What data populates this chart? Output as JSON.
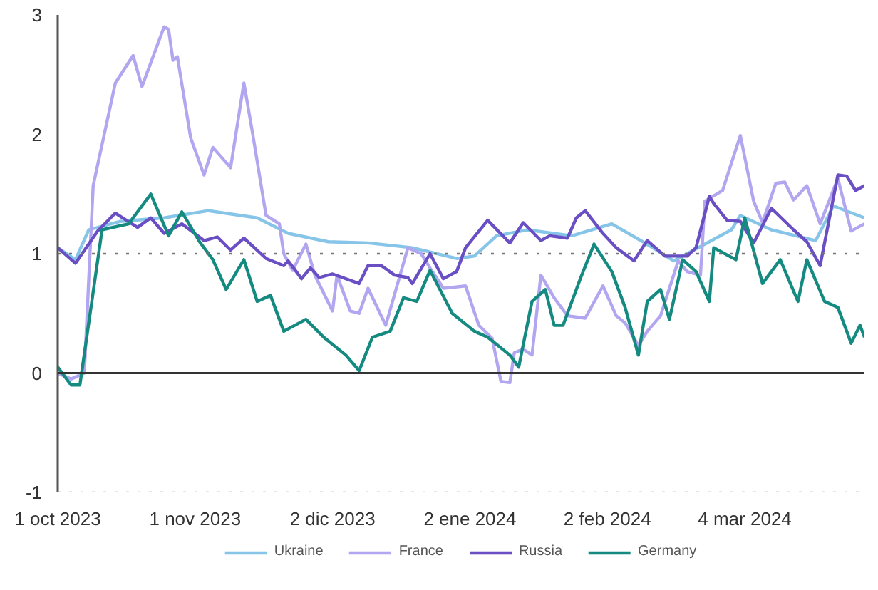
{
  "chart_data": {
    "type": "line",
    "xlim": [
      "2023-10-01",
      "2024-03-31"
    ],
    "xticks": [
      {
        "value": "2023-10-01",
        "label": "1 oct 2023"
      },
      {
        "value": "2023-11-01",
        "label": "1 nov 2023"
      },
      {
        "value": "2023-12-02",
        "label": "2 dic 2023"
      },
      {
        "value": "2024-01-02",
        "label": "2 ene 2024"
      },
      {
        "value": "2024-02-02",
        "label": "2 feb 2024"
      },
      {
        "value": "2024-03-04",
        "label": "4 mar 2024"
      }
    ],
    "ylim": [
      -1,
      3
    ],
    "yticks": [
      -1,
      0,
      1,
      2,
      3
    ],
    "grid": false,
    "legend": "bottom",
    "marker": "none",
    "line_style": "solid",
    "ref_lines": [
      {
        "axis": "y",
        "value": -1,
        "label": null,
        "color": "#999999",
        "line_style": "dotted"
      },
      {
        "axis": "y",
        "value": 0,
        "label": null,
        "color": "#333333",
        "line_style": "solid"
      },
      {
        "axis": "y",
        "value": 1,
        "label": null,
        "color": "#777777",
        "line_style": "dotted"
      }
    ],
    "series": [
      {
        "name": "Ukraine",
        "color": "#86c5e8",
        "x": [
          "2023-10-01",
          "2023-10-05",
          "2023-10-08",
          "2023-10-15",
          "2023-10-25",
          "2023-11-04",
          "2023-11-15",
          "2023-11-22",
          "2023-12-01",
          "2023-12-10",
          "2023-12-20",
          "2023-12-30",
          "2024-01-03",
          "2024-01-08",
          "2024-01-15",
          "2024-01-25",
          "2024-02-03",
          "2024-02-10",
          "2024-02-17",
          "2024-02-25",
          "2024-03-01",
          "2024-03-03",
          "2024-03-10",
          "2024-03-20",
          "2024-03-24",
          "2024-03-31"
        ],
        "values": [
          1.05,
          0.95,
          1.2,
          1.27,
          1.3,
          1.36,
          1.3,
          1.17,
          1.1,
          1.09,
          1.05,
          0.96,
          0.98,
          1.15,
          1.2,
          1.15,
          1.25,
          1.1,
          0.94,
          1.1,
          1.2,
          1.32,
          1.2,
          1.11,
          1.4,
          1.3
        ]
      },
      {
        "name": "France",
        "color": "#b3a6f0",
        "x": [
          "2023-10-01",
          "2023-10-04",
          "2023-10-07",
          "2023-10-09",
          "2023-10-14",
          "2023-10-18",
          "2023-10-20",
          "2023-10-25",
          "2023-10-26",
          "2023-10-27",
          "2023-10-28",
          "2023-10-31",
          "2023-11-03",
          "2023-11-05",
          "2023-11-09",
          "2023-11-12",
          "2023-11-14",
          "2023-11-17",
          "2023-11-20",
          "2023-11-21",
          "2023-11-23",
          "2023-11-26",
          "2023-11-28",
          "2023-12-02",
          "2023-12-03",
          "2023-12-06",
          "2023-12-08",
          "2023-12-10",
          "2023-12-14",
          "2023-12-19",
          "2023-12-22",
          "2023-12-24",
          "2023-12-27",
          "2024-01-01",
          "2024-01-04",
          "2024-01-07",
          "2024-01-09",
          "2024-01-11",
          "2024-01-12",
          "2024-01-14",
          "2024-01-16",
          "2024-01-18",
          "2024-01-21",
          "2024-01-24",
          "2024-01-28",
          "2024-02-01",
          "2024-02-04",
          "2024-02-06",
          "2024-02-09",
          "2024-02-11",
          "2024-02-14",
          "2024-02-18",
          "2024-02-20",
          "2024-02-23",
          "2024-02-24",
          "2024-02-28",
          "2024-03-03",
          "2024-03-06",
          "2024-03-08",
          "2024-03-11",
          "2024-03-13",
          "2024-03-15",
          "2024-03-18",
          "2024-03-21",
          "2024-03-25",
          "2024-03-28",
          "2024-03-31"
        ],
        "values": [
          0,
          -0.05,
          0,
          1.57,
          2.43,
          2.66,
          2.4,
          2.9,
          2.88,
          2.62,
          2.65,
          1.97,
          1.66,
          1.89,
          1.72,
          2.43,
          2.0,
          1.32,
          1.25,
          1.0,
          0.86,
          1.08,
          0.82,
          0.52,
          0.82,
          0.52,
          0.5,
          0.71,
          0.4,
          1.05,
          1.0,
          0.88,
          0.71,
          0.73,
          0.4,
          0.29,
          -0.07,
          -0.08,
          0.17,
          0.2,
          0.15,
          0.82,
          0.63,
          0.48,
          0.46,
          0.73,
          0.48,
          0.42,
          0.23,
          0.35,
          0.48,
          0.94,
          0.85,
          0.82,
          1.44,
          1.53,
          1.99,
          1.44,
          1.26,
          1.59,
          1.6,
          1.45,
          1.57,
          1.25,
          1.63,
          1.19,
          1.25
        ]
      },
      {
        "name": "Russia",
        "color": "#6a4fc4",
        "x": [
          "2023-10-01",
          "2023-10-05",
          "2023-10-10",
          "2023-10-14",
          "2023-10-19",
          "2023-10-22",
          "2023-10-25",
          "2023-10-29",
          "2023-11-03",
          "2023-11-06",
          "2023-11-09",
          "2023-11-12",
          "2023-11-17",
          "2023-11-21",
          "2023-11-22",
          "2023-11-25",
          "2023-11-27",
          "2023-11-29",
          "2023-12-02",
          "2023-12-08",
          "2023-12-10",
          "2023-12-13",
          "2023-12-16",
          "2023-12-19",
          "2023-12-20",
          "2023-12-24",
          "2023-12-27",
          "2023-12-30",
          "2024-01-01",
          "2024-01-06",
          "2024-01-11",
          "2024-01-14",
          "2024-01-18",
          "2024-01-20",
          "2024-01-24",
          "2024-01-26",
          "2024-01-28",
          "2024-02-01",
          "2024-02-04",
          "2024-02-08",
          "2024-02-11",
          "2024-02-15",
          "2024-02-20",
          "2024-02-22",
          "2024-02-25",
          "2024-02-26",
          "2024-02-29",
          "2024-03-03",
          "2024-03-06",
          "2024-03-10",
          "2024-03-15",
          "2024-03-18",
          "2024-03-21",
          "2024-03-25",
          "2024-03-27",
          "2024-03-29",
          "2024-03-31"
        ],
        "values": [
          1.05,
          0.92,
          1.19,
          1.34,
          1.22,
          1.3,
          1.17,
          1.25,
          1.11,
          1.14,
          1.03,
          1.13,
          0.96,
          0.9,
          0.94,
          0.79,
          0.88,
          0.8,
          0.83,
          0.75,
          0.9,
          0.9,
          0.82,
          0.8,
          0.75,
          1.0,
          0.79,
          0.85,
          1.05,
          1.28,
          1.09,
          1.26,
          1.11,
          1.15,
          1.13,
          1.3,
          1.36,
          1.17,
          1.05,
          0.94,
          1.11,
          0.98,
          0.98,
          1.05,
          1.48,
          1.42,
          1.28,
          1.27,
          1.09,
          1.38,
          1.2,
          1.1,
          0.9,
          1.66,
          1.65,
          1.53,
          1.57
        ]
      },
      {
        "name": "Germany",
        "color": "#148a80",
        "x": [
          "2023-10-01",
          "2023-10-04",
          "2023-10-06",
          "2023-10-11",
          "2023-10-17",
          "2023-10-22",
          "2023-10-26",
          "2023-10-29",
          "2023-11-02",
          "2023-11-05",
          "2023-11-08",
          "2023-11-12",
          "2023-11-15",
          "2023-11-18",
          "2023-11-21",
          "2023-11-26",
          "2023-11-30",
          "2023-12-05",
          "2023-12-08",
          "2023-12-11",
          "2023-12-15",
          "2023-12-18",
          "2023-12-21",
          "2023-12-24",
          "2023-12-29",
          "2024-01-03",
          "2024-01-06",
          "2024-01-11",
          "2024-01-13",
          "2024-01-16",
          "2024-01-19",
          "2024-01-21",
          "2024-01-23",
          "2024-01-27",
          "2024-01-30",
          "2024-02-03",
          "2024-02-06",
          "2024-02-09",
          "2024-02-11",
          "2024-02-14",
          "2024-02-16",
          "2024-02-19",
          "2024-02-22",
          "2024-02-25",
          "2024-02-26",
          "2024-03-02",
          "2024-03-04",
          "2024-03-08",
          "2024-03-12",
          "2024-03-16",
          "2024-03-18",
          "2024-03-22",
          "2024-03-25",
          "2024-03-28",
          "2024-03-30",
          "2024-03-31"
        ],
        "values": [
          0.05,
          -0.1,
          -0.1,
          1.2,
          1.25,
          1.5,
          1.15,
          1.35,
          1.1,
          0.95,
          0.7,
          0.95,
          0.6,
          0.65,
          0.35,
          0.45,
          0.3,
          0.15,
          0.02,
          0.3,
          0.35,
          0.63,
          0.6,
          0.86,
          0.5,
          0.35,
          0.3,
          0.15,
          0.05,
          0.6,
          0.7,
          0.4,
          0.4,
          0.8,
          1.08,
          0.85,
          0.55,
          0.15,
          0.6,
          0.7,
          0.45,
          0.95,
          0.85,
          0.6,
          1.05,
          0.95,
          1.3,
          0.75,
          0.95,
          0.6,
          0.95,
          0.6,
          0.55,
          0.25,
          0.4,
          0.3
        ]
      }
    ]
  }
}
